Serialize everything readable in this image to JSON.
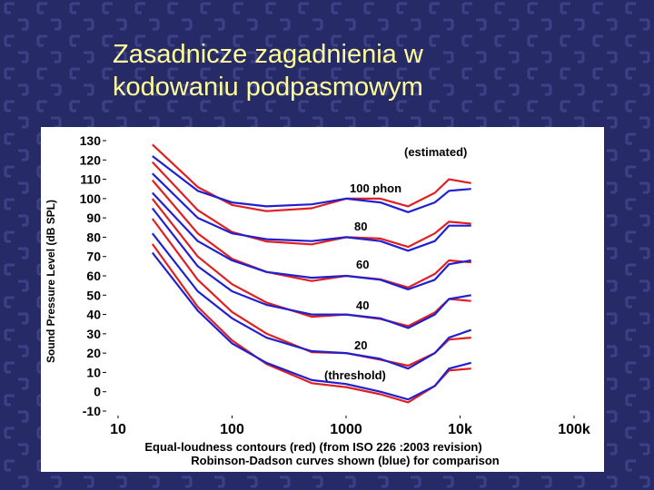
{
  "title_lines": [
    "Zasadnicze zagadnienia w",
    "kodowaniu podpasmowym"
  ],
  "chart_data": {
    "type": "line",
    "y_label": "Sound Pressure Level (dB SPL)",
    "caption": [
      "Equal-loudness contours (red) (from ISO 226 :2003 revision)",
      "Robinson-Dadson curves shown (blue) for comparison"
    ],
    "annotations": [
      "(estimated)",
      "100 phon",
      "80",
      "60",
      "40",
      "20",
      "(threshold)"
    ],
    "xscale": "log",
    "x": [
      20,
      50,
      100,
      200,
      500,
      1000,
      2000,
      3500,
      6000,
      8000,
      12500
    ],
    "xlim": [
      10,
      100000
    ],
    "xticks": [
      10,
      100,
      1000,
      {
        "value": 10000,
        "label": "10k"
      },
      {
        "value": 100000,
        "label": "100k"
      }
    ],
    "ylim": [
      -10,
      130
    ],
    "yticks": [
      130,
      120,
      110,
      100,
      90,
      80,
      70,
      60,
      50,
      40,
      30,
      20,
      10,
      0,
      -10
    ],
    "series": [
      {
        "color": "#e02020",
        "values": [
          76.5,
          44,
          26.6,
          14.4,
          4.4,
          2.4,
          -1.3,
          -5.5,
          3,
          11,
          12
        ]
      },
      {
        "color": "#e02020",
        "values": [
          89.6,
          58,
          41.3,
          30.1,
          20.5,
          20,
          16.6,
          13.5,
          20,
          27,
          28
        ]
      },
      {
        "color": "#e02020",
        "values": [
          99.9,
          70,
          55.7,
          46.2,
          38.8,
          40,
          37.7,
          34,
          41,
          48,
          47
        ]
      },
      {
        "color": "#e02020",
        "values": [
          109.5,
          82,
          68.8,
          62,
          57.3,
          60,
          58.2,
          54,
          61,
          68,
          67
        ]
      },
      {
        "color": "#e02020",
        "values": [
          118.9,
          94,
          82.7,
          77.8,
          76.3,
          80,
          79.3,
          75,
          82,
          88,
          87
        ]
      },
      {
        "color": "#e02020",
        "values": [
          128,
          106,
          96.7,
          93.5,
          95,
          100,
          100,
          96,
          103,
          110,
          108
        ]
      },
      {
        "color": "#2020d0",
        "values": [
          72,
          42,
          25,
          15,
          6,
          4,
          0,
          -4,
          3,
          12,
          15
        ]
      },
      {
        "color": "#2020d0",
        "values": [
          82,
          52,
          38,
          28,
          21,
          20,
          17,
          12,
          20,
          28,
          32
        ]
      },
      {
        "color": "#2020d0",
        "values": [
          95,
          65,
          52,
          45,
          40,
          40,
          38,
          33,
          40,
          48,
          50
        ]
      },
      {
        "color": "#2020d0",
        "values": [
          103,
          78,
          68,
          62,
          59,
          60,
          58,
          53,
          58,
          66,
          68
        ]
      },
      {
        "color": "#2020d0",
        "values": [
          113,
          90,
          82,
          79,
          78,
          80,
          78,
          73,
          78,
          86,
          86
        ]
      },
      {
        "color": "#2020d0",
        "values": [
          122,
          104,
          98,
          96,
          97,
          100,
          98,
          93,
          98,
          104,
          105
        ]
      }
    ]
  }
}
